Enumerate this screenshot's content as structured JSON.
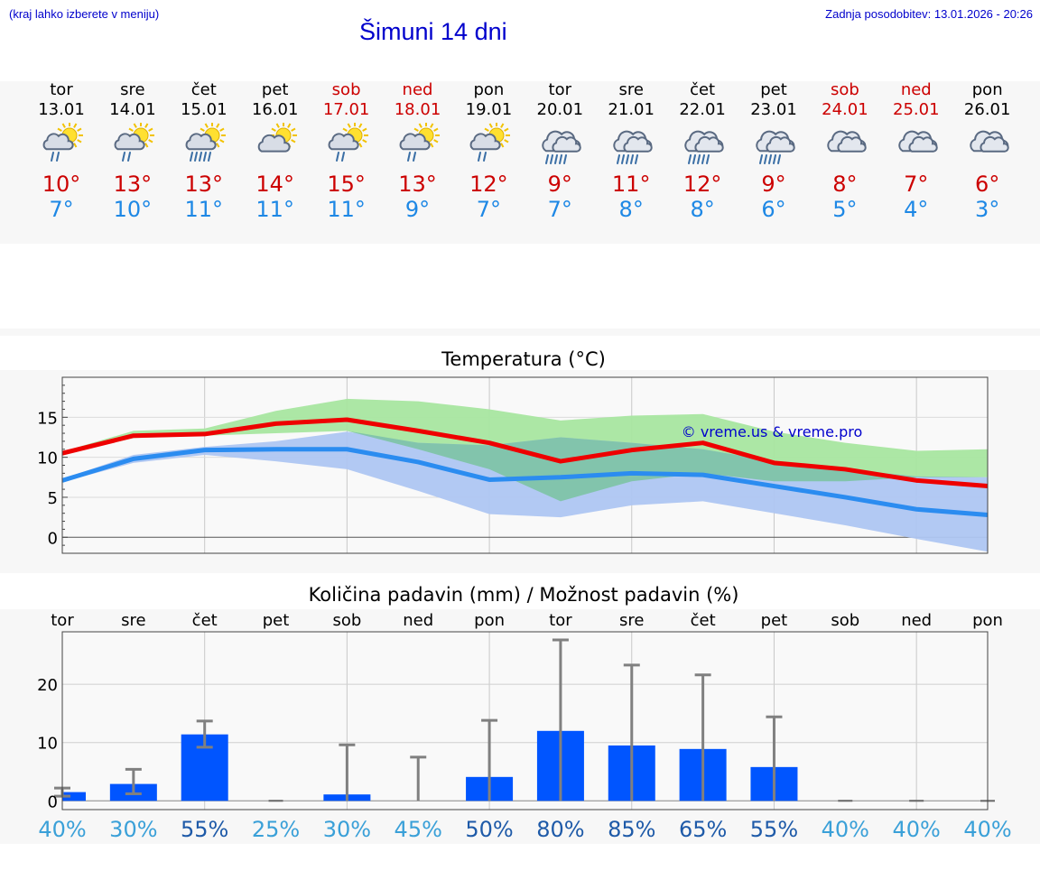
{
  "header": {
    "hint": "(kraj lahko izberete v meniju)",
    "title": "Šimuni 14 dni",
    "updated": "Zadnja posodobitev: 13.01.2026 - 20:26"
  },
  "colors": {
    "link": "#0000cc",
    "max_temp": "#cc0000",
    "min_temp": "#1e88e5",
    "weekend": "#cc0000",
    "max_band": "#a8e6a0",
    "min_band": "#aec6f2",
    "overlap_band": "#7fc4a8",
    "precip_bar": "#0055ff",
    "error_bar": "#808080"
  },
  "days": [
    {
      "name": "tor",
      "date": "13.01",
      "weekend": false,
      "icon": "sun-cloud-rain-icon",
      "tmax": "10°",
      "tmin": "7°"
    },
    {
      "name": "sre",
      "date": "14.01",
      "weekend": false,
      "icon": "sun-cloud-rain-icon",
      "tmax": "13°",
      "tmin": "10°"
    },
    {
      "name": "čet",
      "date": "15.01",
      "weekend": false,
      "icon": "sun-cloud-heavy-rain-icon",
      "tmax": "13°",
      "tmin": "11°"
    },
    {
      "name": "pet",
      "date": "16.01",
      "weekend": false,
      "icon": "sun-cloud-icon",
      "tmax": "14°",
      "tmin": "11°"
    },
    {
      "name": "sob",
      "date": "17.01",
      "weekend": true,
      "icon": "sun-cloud-rain-icon",
      "tmax": "15°",
      "tmin": "11°"
    },
    {
      "name": "ned",
      "date": "18.01",
      "weekend": true,
      "icon": "sun-cloud-rain-icon",
      "tmax": "13°",
      "tmin": "9°"
    },
    {
      "name": "pon",
      "date": "19.01",
      "weekend": false,
      "icon": "sun-cloud-rain-icon",
      "tmax": "12°",
      "tmin": "7°"
    },
    {
      "name": "tor",
      "date": "20.01",
      "weekend": false,
      "icon": "cloud-heavy-rain-icon",
      "tmax": "9°",
      "tmin": "7°"
    },
    {
      "name": "sre",
      "date": "21.01",
      "weekend": false,
      "icon": "cloud-heavy-rain-icon",
      "tmax": "11°",
      "tmin": "8°"
    },
    {
      "name": "čet",
      "date": "22.01",
      "weekend": false,
      "icon": "cloud-heavy-rain-icon",
      "tmax": "12°",
      "tmin": "8°"
    },
    {
      "name": "pet",
      "date": "23.01",
      "weekend": false,
      "icon": "cloud-heavy-rain-icon",
      "tmax": "9°",
      "tmin": "6°"
    },
    {
      "name": "sob",
      "date": "24.01",
      "weekend": true,
      "icon": "cloud-icon",
      "tmax": "8°",
      "tmin": "5°"
    },
    {
      "name": "ned",
      "date": "25.01",
      "weekend": true,
      "icon": "cloud-icon",
      "tmax": "7°",
      "tmin": "4°"
    },
    {
      "name": "pon",
      "date": "26.01",
      "weekend": false,
      "icon": "cloud-icon",
      "tmax": "6°",
      "tmin": "3°"
    }
  ],
  "chart_data": [
    {
      "type": "line",
      "title": "Temperatura (°C)",
      "xlabel": "",
      "ylabel": "",
      "ylim": [
        -2,
        20
      ],
      "yticks": [
        0,
        5,
        10,
        15
      ],
      "grid": true,
      "watermark": "© vreme.us & vreme.pro",
      "x": [
        0,
        2,
        4,
        6,
        8,
        10,
        12,
        14,
        16,
        18,
        20,
        22,
        24,
        26
      ],
      "series": [
        {
          "name": "max",
          "values": [
            10.5,
            12.7,
            12.9,
            14.2,
            14.7,
            13.3,
            11.8,
            9.5,
            10.9,
            11.8,
            9.3,
            8.5,
            7.1,
            6.4
          ]
        },
        {
          "name": "min",
          "values": [
            7.1,
            9.8,
            10.9,
            11.0,
            11.0,
            9.4,
            7.2,
            7.5,
            8.0,
            7.8,
            6.4,
            5.0,
            3.5,
            2.8
          ]
        }
      ],
      "bands": [
        {
          "name": "max range",
          "lower": [
            10.3,
            12.4,
            12.7,
            13.0,
            13.3,
            11.0,
            8.5,
            4.5,
            7.0,
            8.0,
            7.0,
            7.0,
            7.5,
            7.5
          ],
          "upper": [
            10.7,
            13.3,
            13.6,
            15.8,
            17.3,
            17.0,
            16.0,
            14.6,
            15.2,
            15.4,
            13.2,
            11.8,
            10.8,
            11.0
          ]
        },
        {
          "name": "min range",
          "lower": [
            6.9,
            9.3,
            10.3,
            9.5,
            8.5,
            5.8,
            2.9,
            2.5,
            4.0,
            4.5,
            3.0,
            1.5,
            -0.2,
            -1.8
          ],
          "upper": [
            7.3,
            10.3,
            11.3,
            12.0,
            13.2,
            11.8,
            11.5,
            12.5,
            11.8,
            11.0,
            9.5,
            8.5,
            7.6,
            7.5
          ]
        }
      ]
    },
    {
      "type": "bar",
      "title": "Količina padavin (mm) / Možnost padavin (%)",
      "categories": [
        "tor",
        "sre",
        "čet",
        "pet",
        "sob",
        "ned",
        "pon",
        "tor",
        "sre",
        "čet",
        "pet",
        "sob",
        "ned",
        "pon"
      ],
      "values": [
        1.5,
        2.9,
        11.4,
        0.0,
        1.1,
        0.0,
        4.1,
        12.0,
        9.5,
        8.9,
        5.8,
        0.0,
        0.0,
        0.0
      ],
      "error_low": [
        0.8,
        1.2,
        9.2,
        0.0,
        0.0,
        0.0,
        0.0,
        0.0,
        0.0,
        0.0,
        0.0,
        0.0,
        0.0,
        0.0
      ],
      "error_high": [
        2.2,
        5.4,
        13.7,
        0.0,
        9.6,
        7.5,
        13.8,
        27.6,
        23.3,
        21.6,
        14.4,
        0.0,
        0.0,
        0.0
      ],
      "probability": [
        "40%",
        "30%",
        "55%",
        "25%",
        "30%",
        "45%",
        "50%",
        "80%",
        "85%",
        "65%",
        "55%",
        "40%",
        "40%",
        "40%"
      ],
      "probability_values": [
        40,
        30,
        55,
        25,
        30,
        45,
        50,
        80,
        85,
        65,
        55,
        40,
        40,
        40
      ],
      "ylim": [
        -1.5,
        29
      ],
      "yticks": [
        0,
        10,
        20
      ],
      "grid": true
    }
  ]
}
